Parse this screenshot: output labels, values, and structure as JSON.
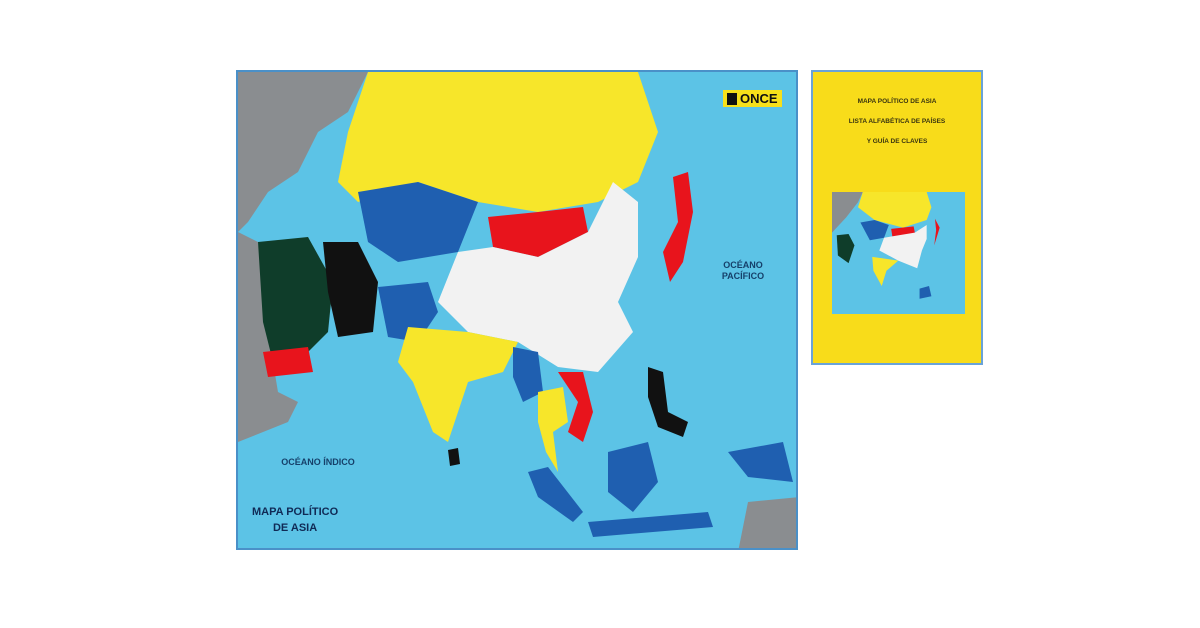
{
  "map": {
    "logo": "ONCE",
    "pacific_label": "OCÉANO PACÍFICO",
    "indian_label": "OCÉANO ÍNDICO",
    "title_line1": "MAPA POLÍTICO",
    "title_line2": "DE ASIA",
    "colors": {
      "sea": "#5cc3e6",
      "yellow": "#f7e62a",
      "blue": "#1f5fb0",
      "red": "#e8141c",
      "white": "#f2f2f2",
      "green": "#0f3d2a",
      "black": "#111111",
      "gray": "#8a8d90"
    }
  },
  "booklet": {
    "line1": "MAPA POLÍTICO DE ASIA",
    "line2": "LISTA ALFABÉTICA DE PAÍSES",
    "line3": "Y GUÍA DE CLAVES"
  }
}
